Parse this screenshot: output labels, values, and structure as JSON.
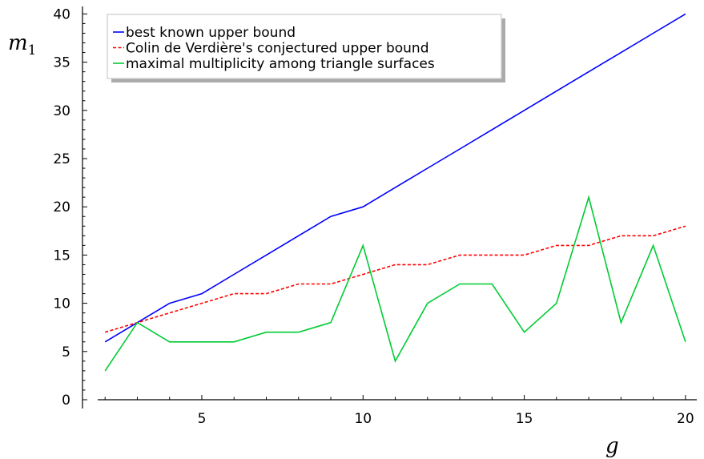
{
  "chart_data": {
    "type": "line",
    "xlabel": "g",
    "ylabel": "m",
    "ylabel_sub": "1",
    "xlim": [
      1.3,
      20.1
    ],
    "ylim": [
      0,
      40
    ],
    "xticks": [
      5,
      10,
      15,
      20
    ],
    "yticks": [
      0,
      5,
      10,
      15,
      20,
      25,
      30,
      35,
      40
    ],
    "x": [
      2,
      3,
      4,
      5,
      6,
      7,
      8,
      9,
      10,
      11,
      12,
      13,
      14,
      15,
      16,
      17,
      18,
      19,
      20
    ],
    "series": [
      {
        "name": "best known upper bound",
        "color": "#0000ff",
        "dash": "solid",
        "values": [
          6,
          8,
          10,
          11,
          13,
          15,
          17,
          19,
          20,
          22,
          24,
          26,
          28,
          30,
          32,
          34,
          36,
          38,
          40
        ]
      },
      {
        "name": "Colin de Verdière's conjectured upper bound",
        "color": "#ff0000",
        "dash": "dashed",
        "values": [
          7,
          8,
          9,
          10,
          11,
          11,
          12,
          12,
          13,
          14,
          14,
          15,
          15,
          15,
          16,
          16,
          17,
          17,
          18
        ]
      },
      {
        "name": "maximal multiplicity among triangle surfaces",
        "color": "#00cc33",
        "dash": "solid",
        "values": [
          3,
          8,
          6,
          6,
          6,
          7,
          7,
          8,
          16,
          4,
          10,
          12,
          12,
          7,
          10,
          21,
          8,
          16,
          6
        ]
      }
    ],
    "grid": false,
    "legend_position": "top-left"
  }
}
